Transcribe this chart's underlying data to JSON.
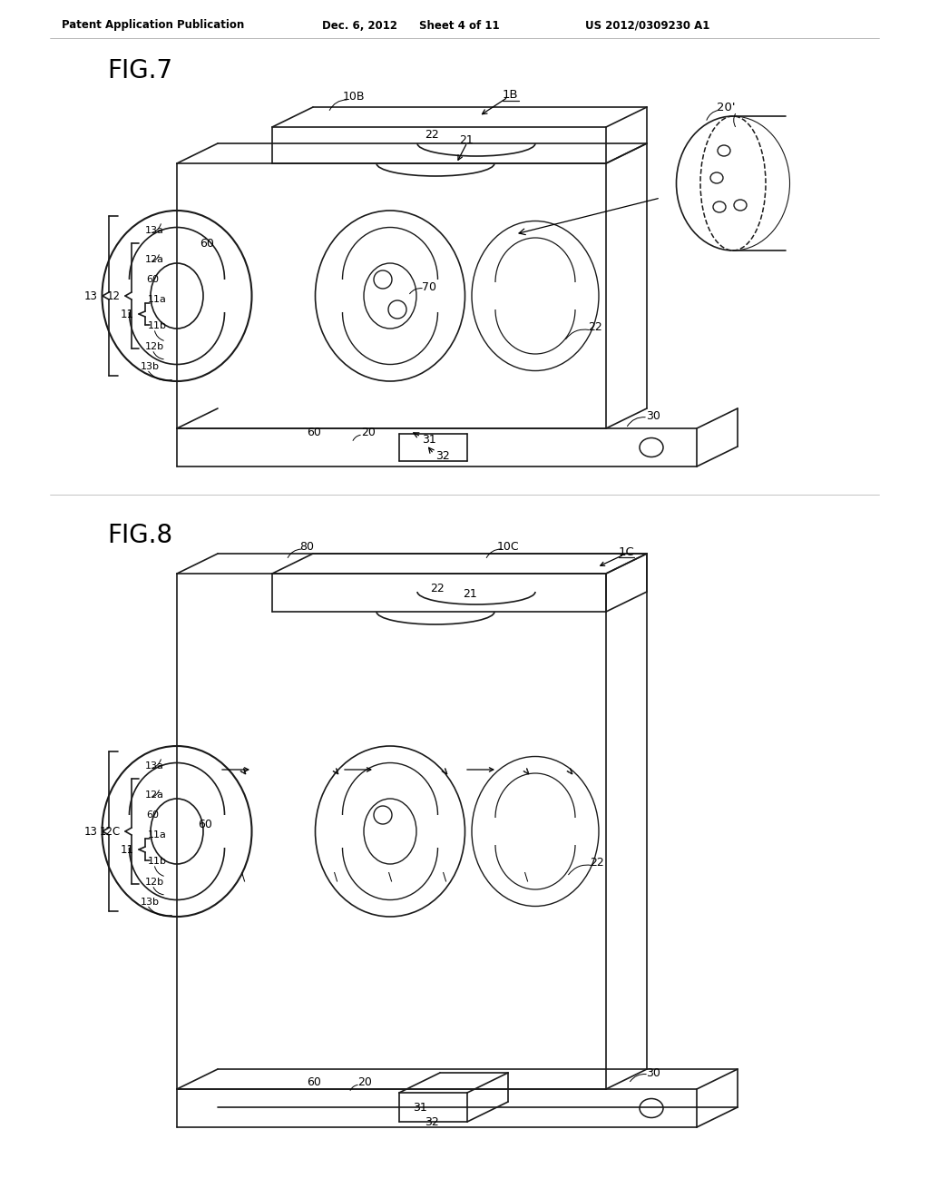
{
  "background_color": "#ffffff",
  "header_text": "Patent Application Publication",
  "header_date": "Dec. 6, 2012",
  "header_sheet": "Sheet 4 of 11",
  "header_patent": "US 2012/0309230 A1",
  "fig7_label": "FIG.7",
  "fig8_label": "FIG.8",
  "line_color": "#1a1a1a",
  "line_width": 1.2,
  "text_color": "#000000"
}
